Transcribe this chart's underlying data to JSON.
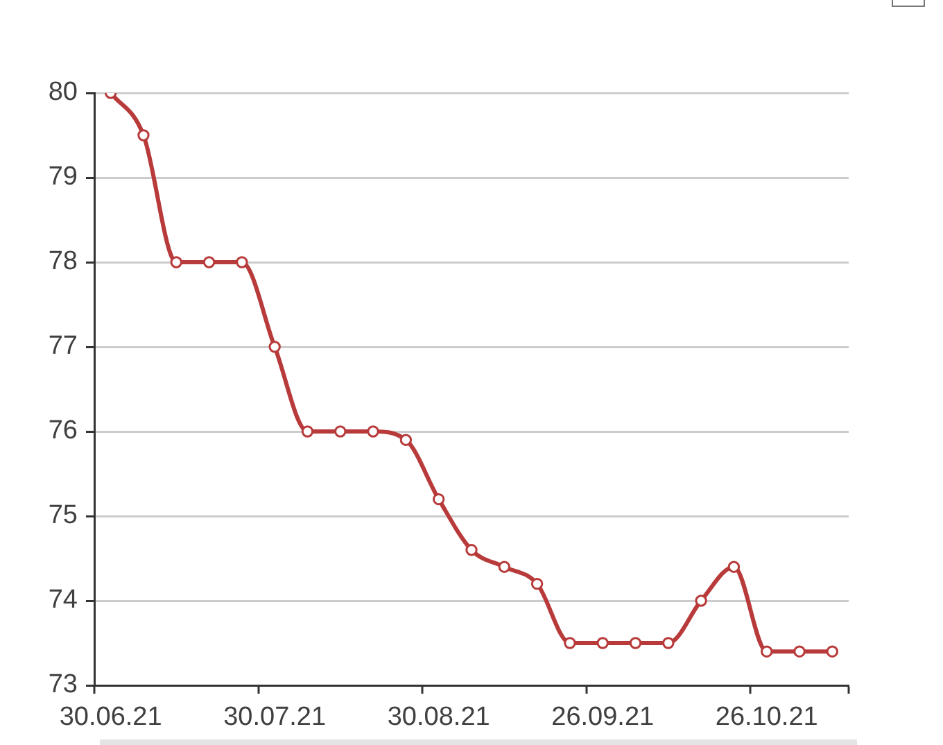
{
  "chart_data": {
    "type": "line",
    "categories": [
      "30.06.21",
      null,
      null,
      null,
      null,
      "30.07.21",
      null,
      null,
      null,
      null,
      "30.08.21",
      null,
      null,
      null,
      null,
      "26.09.21",
      null,
      null,
      null,
      null,
      "26.10.21",
      null,
      null
    ],
    "series": [
      {
        "color": "#b83a3a",
        "values": [
          80,
          79.5,
          78,
          78,
          78,
          77,
          76,
          76,
          76,
          75.9,
          75.2,
          74.6,
          74.4,
          74.2,
          73.5,
          73.5,
          73.5,
          73.5,
          74,
          74.4,
          73.4,
          73.4,
          73.4
        ]
      }
    ],
    "ylim": [
      73,
      80
    ],
    "yticks": [
      73,
      74,
      75,
      76,
      77,
      78,
      79,
      80
    ],
    "grid": "y",
    "marker": "circle"
  }
}
